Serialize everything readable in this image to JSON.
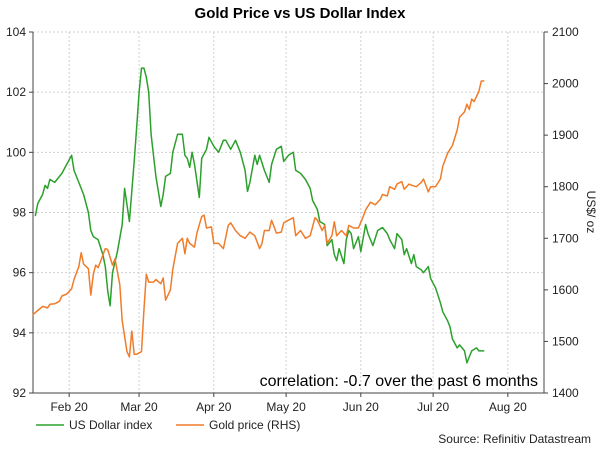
{
  "chart_data": {
    "type": "line",
    "title": "Gold Price vs US Dollar Index",
    "ylabel_right": "US$/ oz",
    "annotation": "correlation: -0.7 over the past 6 months",
    "source": "Source: Refinitiv Datastream",
    "x_ticks": [
      "Feb 20",
      "Mar 20",
      "Apr 20",
      "May 20",
      "Jun 20",
      "Jul 20",
      "Aug 20"
    ],
    "x_tick_days": [
      15,
      44,
      75,
      105,
      136,
      166,
      197
    ],
    "x_range_days": [
      0,
      212
    ],
    "ylim_left": [
      92,
      104
    ],
    "yticks_left": [
      92,
      94,
      96,
      98,
      100,
      102,
      104
    ],
    "ylim_right": [
      1400,
      2100
    ],
    "yticks_right": [
      1400,
      1500,
      1600,
      1700,
      1800,
      1900,
      2000,
      2100
    ],
    "grid": true,
    "legend_position": "bottom-left",
    "series": [
      {
        "name": "US Dollar index",
        "axis": "left",
        "color": "#2ca02c",
        "points": [
          [
            1,
            97.9
          ],
          [
            2,
            98.3
          ],
          [
            4,
            98.6
          ],
          [
            5,
            98.9
          ],
          [
            6,
            98.8
          ],
          [
            7,
            99.1
          ],
          [
            9,
            99.0
          ],
          [
            11,
            99.2
          ],
          [
            12,
            99.3
          ],
          [
            14,
            99.6
          ],
          [
            16,
            99.9
          ],
          [
            17,
            99.4
          ],
          [
            19,
            99.0
          ],
          [
            21,
            98.6
          ],
          [
            23,
            98.0
          ],
          [
            24,
            97.4
          ],
          [
            25,
            97.2
          ],
          [
            27,
            97.1
          ],
          [
            29,
            96.6
          ],
          [
            30,
            96.2
          ],
          [
            31,
            95.4
          ],
          [
            32,
            94.9
          ],
          [
            33,
            96.0
          ],
          [
            35,
            96.7
          ],
          [
            37,
            97.6
          ],
          [
            38,
            98.8
          ],
          [
            40,
            97.7
          ],
          [
            42,
            99.7
          ],
          [
            43,
            100.8
          ],
          [
            44,
            102.0
          ],
          [
            45,
            102.8
          ],
          [
            46,
            102.8
          ],
          [
            47,
            102.5
          ],
          [
            48,
            102.0
          ],
          [
            49,
            100.6
          ],
          [
            51,
            99.2
          ],
          [
            53,
            98.2
          ],
          [
            54,
            98.6
          ],
          [
            55,
            99.2
          ],
          [
            57,
            99.3
          ],
          [
            58,
            100.0
          ],
          [
            60,
            100.6
          ],
          [
            62,
            100.6
          ],
          [
            63,
            99.9
          ],
          [
            64,
            99.8
          ],
          [
            65,
            99.5
          ],
          [
            66,
            100.0
          ],
          [
            67,
            99.6
          ],
          [
            69,
            98.5
          ],
          [
            70,
            99.8
          ],
          [
            72,
            100.1
          ],
          [
            73,
            100.5
          ],
          [
            75,
            100.2
          ],
          [
            77,
            100.0
          ],
          [
            79,
            100.4
          ],
          [
            80,
            100.4
          ],
          [
            82,
            100.1
          ],
          [
            84,
            100.4
          ],
          [
            86,
            100.0
          ],
          [
            88,
            99.4
          ],
          [
            89,
            98.7
          ],
          [
            90,
            99.0
          ],
          [
            92,
            99.9
          ],
          [
            93,
            99.6
          ],
          [
            94,
            99.9
          ],
          [
            96,
            99.4
          ],
          [
            98,
            99.0
          ],
          [
            99,
            99.6
          ],
          [
            101,
            100.1
          ],
          [
            103,
            100.2
          ],
          [
            104,
            99.7
          ],
          [
            106,
            99.9
          ],
          [
            108,
            100.0
          ],
          [
            109,
            99.4
          ],
          [
            111,
            99.3
          ],
          [
            113,
            99.1
          ],
          [
            115,
            98.8
          ],
          [
            116,
            98.4
          ],
          [
            118,
            98.1
          ],
          [
            119,
            97.7
          ],
          [
            121,
            97.6
          ],
          [
            122,
            96.9
          ],
          [
            124,
            97.1
          ],
          [
            125,
            96.6
          ],
          [
            126,
            96.4
          ],
          [
            127,
            96.8
          ],
          [
            129,
            96.3
          ],
          [
            130,
            97.1
          ],
          [
            131,
            97.4
          ],
          [
            132,
            97.3
          ],
          [
            133,
            96.8
          ],
          [
            135,
            97.2
          ],
          [
            136,
            96.7
          ],
          [
            138,
            97.6
          ],
          [
            139,
            97.3
          ],
          [
            141,
            96.9
          ],
          [
            143,
            97.4
          ],
          [
            145,
            97.5
          ],
          [
            147,
            97.3
          ],
          [
            148,
            97.1
          ],
          [
            150,
            96.8
          ],
          [
            151,
            97.3
          ],
          [
            153,
            97.1
          ],
          [
            154,
            96.6
          ],
          [
            155,
            96.8
          ],
          [
            157,
            96.3
          ],
          [
            158,
            96.6
          ],
          [
            159,
            96.2
          ],
          [
            161,
            96.1
          ],
          [
            162,
            96.0
          ],
          [
            164,
            96.2
          ],
          [
            165,
            95.8
          ],
          [
            167,
            95.5
          ],
          [
            169,
            95.0
          ],
          [
            170,
            94.7
          ],
          [
            172,
            94.4
          ],
          [
            173,
            94.2
          ],
          [
            174,
            93.8
          ],
          [
            176,
            93.5
          ],
          [
            177,
            93.6
          ],
          [
            179,
            93.4
          ],
          [
            180,
            93.0
          ],
          [
            182,
            93.4
          ],
          [
            184,
            93.5
          ],
          [
            185,
            93.4
          ],
          [
            187,
            93.4
          ]
        ]
      },
      {
        "name": "Gold price (RHS)",
        "axis": "right",
        "color": "#f07c2a",
        "points": [
          [
            0,
            1552
          ],
          [
            2,
            1560
          ],
          [
            4,
            1568
          ],
          [
            6,
            1565
          ],
          [
            7,
            1572
          ],
          [
            9,
            1573
          ],
          [
            11,
            1578
          ],
          [
            12,
            1588
          ],
          [
            14,
            1592
          ],
          [
            16,
            1602
          ],
          [
            17,
            1620
          ],
          [
            19,
            1645
          ],
          [
            20,
            1672
          ],
          [
            21,
            1650
          ],
          [
            23,
            1641
          ],
          [
            24,
            1590
          ],
          [
            25,
            1630
          ],
          [
            26,
            1648
          ],
          [
            27,
            1643
          ],
          [
            28,
            1655
          ],
          [
            30,
            1680
          ],
          [
            31,
            1678
          ],
          [
            33,
            1648
          ],
          [
            34,
            1660
          ],
          [
            36,
            1610
          ],
          [
            37,
            1540
          ],
          [
            39,
            1480
          ],
          [
            40,
            1470
          ],
          [
            41,
            1520
          ],
          [
            42,
            1475
          ],
          [
            43,
            1475
          ],
          [
            45,
            1480
          ],
          [
            46,
            1560
          ],
          [
            47,
            1630
          ],
          [
            48,
            1615
          ],
          [
            50,
            1615
          ],
          [
            51,
            1620
          ],
          [
            53,
            1612
          ],
          [
            54,
            1623
          ],
          [
            55,
            1580
          ],
          [
            57,
            1600
          ],
          [
            58,
            1640
          ],
          [
            60,
            1690
          ],
          [
            62,
            1700
          ],
          [
            63,
            1670
          ],
          [
            64,
            1700
          ],
          [
            65,
            1690
          ],
          [
            67,
            1683
          ],
          [
            68,
            1710
          ],
          [
            70,
            1742
          ],
          [
            71,
            1745
          ],
          [
            72,
            1720
          ],
          [
            74,
            1722
          ],
          [
            75,
            1690
          ],
          [
            77,
            1690
          ],
          [
            79,
            1680
          ],
          [
            81,
            1725
          ],
          [
            82,
            1730
          ],
          [
            84,
            1715
          ],
          [
            86,
            1705
          ],
          [
            88,
            1700
          ],
          [
            90,
            1712
          ],
          [
            92,
            1705
          ],
          [
            94,
            1680
          ],
          [
            95,
            1690
          ],
          [
            96,
            1715
          ],
          [
            98,
            1715
          ],
          [
            99,
            1735
          ],
          [
            101,
            1710
          ],
          [
            103,
            1712
          ],
          [
            104,
            1730
          ],
          [
            106,
            1735
          ],
          [
            108,
            1740
          ],
          [
            109,
            1705
          ],
          [
            111,
            1715
          ],
          [
            113,
            1700
          ],
          [
            115,
            1705
          ],
          [
            117,
            1740
          ],
          [
            118,
            1735
          ],
          [
            120,
            1715
          ],
          [
            121,
            1725
          ],
          [
            122,
            1690
          ],
          [
            124,
            1705
          ],
          [
            125,
            1732
          ],
          [
            126,
            1705
          ],
          [
            128,
            1715
          ],
          [
            130,
            1705
          ],
          [
            131,
            1725
          ],
          [
            133,
            1720
          ],
          [
            135,
            1720
          ],
          [
            137,
            1742
          ],
          [
            138,
            1755
          ],
          [
            140,
            1770
          ],
          [
            142,
            1765
          ],
          [
            144,
            1775
          ],
          [
            145,
            1785
          ],
          [
            147,
            1782
          ],
          [
            148,
            1800
          ],
          [
            150,
            1795
          ],
          [
            151,
            1805
          ],
          [
            153,
            1810
          ],
          [
            154,
            1795
          ],
          [
            156,
            1805
          ],
          [
            157,
            1803
          ],
          [
            159,
            1800
          ],
          [
            161,
            1808
          ],
          [
            162,
            1815
          ],
          [
            164,
            1790
          ],
          [
            165,
            1800
          ],
          [
            167,
            1800
          ],
          [
            169,
            1815
          ],
          [
            170,
            1840
          ],
          [
            172,
            1865
          ],
          [
            174,
            1880
          ],
          [
            176,
            1910
          ],
          [
            177,
            1935
          ],
          [
            179,
            1945
          ],
          [
            180,
            1960
          ],
          [
            181,
            1950
          ],
          [
            182,
            1970
          ],
          [
            183,
            1965
          ],
          [
            184,
            1975
          ],
          [
            185,
            1985
          ],
          [
            186,
            2005
          ],
          [
            187,
            2005
          ]
        ]
      }
    ]
  }
}
